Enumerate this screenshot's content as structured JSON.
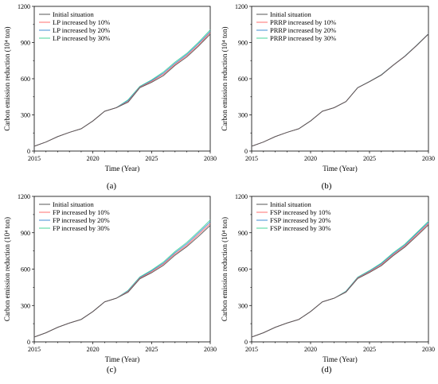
{
  "colors": {
    "initial": "#555555",
    "inc10": "#ff6f6f",
    "inc20": "#3f8fd6",
    "inc30": "#44d49a"
  },
  "chart_data": [
    {
      "type": "line",
      "panel_label": "(a)",
      "xlabel": "Time (Year)",
      "ylabel": "Carbon emission reduction (10⁴ ton)",
      "xlim": [
        2015,
        2030
      ],
      "ylim": [
        0,
        1200
      ],
      "xticks": [
        2015,
        2020,
        2025,
        2030
      ],
      "yticks": [
        0,
        300,
        600,
        900,
        1200
      ],
      "legend_position": "top-left",
      "x": [
        2015,
        2016,
        2017,
        2018,
        2019,
        2020,
        2021,
        2022,
        2023,
        2024,
        2025,
        2026,
        2027,
        2028,
        2029,
        2030
      ],
      "series": [
        {
          "name": "Initial situation",
          "values": [
            40,
            75,
            120,
            155,
            185,
            250,
            330,
            360,
            405,
            525,
            570,
            625,
            710,
            780,
            870,
            970
          ]
        },
        {
          "name": "LP increased by 10%",
          "values": [
            40,
            75,
            120,
            155,
            185,
            250,
            330,
            360,
            410,
            528,
            578,
            635,
            718,
            790,
            880,
            982
          ]
        },
        {
          "name": "LP increased by 20%",
          "values": [
            40,
            75,
            120,
            155,
            185,
            250,
            330,
            360,
            418,
            532,
            584,
            645,
            728,
            800,
            892,
            992
          ]
        },
        {
          "name": "LP increased by 30%",
          "values": [
            40,
            75,
            120,
            155,
            185,
            250,
            330,
            360,
            425,
            537,
            590,
            655,
            738,
            810,
            902,
            1005
          ]
        }
      ]
    },
    {
      "type": "line",
      "panel_label": "(b)",
      "xlabel": "Time (Year)",
      "ylabel": "Carbon emission reduction (10⁴ ton)",
      "xlim": [
        2015,
        2030
      ],
      "ylim": [
        0,
        1200
      ],
      "xticks": [
        2015,
        2020,
        2025,
        2030
      ],
      "yticks": [
        0,
        300,
        600,
        900,
        1200
      ],
      "legend_position": "top-left",
      "x": [
        2015,
        2016,
        2017,
        2018,
        2019,
        2020,
        2021,
        2022,
        2023,
        2024,
        2025,
        2026,
        2027,
        2028,
        2029,
        2030
      ],
      "series": [
        {
          "name": "Initial situation",
          "values": [
            40,
            75,
            120,
            155,
            185,
            250,
            330,
            360,
            410,
            525,
            575,
            630,
            710,
            785,
            875,
            970
          ]
        },
        {
          "name": "PRRP increased by 10%",
          "values": [
            40,
            75,
            120,
            155,
            185,
            250,
            330,
            360,
            410,
            525,
            576,
            631,
            711,
            786,
            876,
            971
          ]
        },
        {
          "name": "PRRP increased by 20%",
          "values": [
            40,
            75,
            120,
            155,
            185,
            250,
            330,
            360,
            410,
            526,
            577,
            632,
            712,
            787,
            877,
            972
          ]
        },
        {
          "name": "PRRP increased by 30%",
          "values": [
            40,
            75,
            120,
            155,
            185,
            250,
            330,
            360,
            410,
            526,
            578,
            633,
            713,
            788,
            878,
            973
          ]
        }
      ]
    },
    {
      "type": "line",
      "panel_label": "(c)",
      "xlabel": "Time (Year)",
      "ylabel": "Carbon emission reduction (10⁴ ton)",
      "xlim": [
        2015,
        2030
      ],
      "ylim": [
        0,
        1200
      ],
      "xticks": [
        2015,
        2020,
        2025,
        2030
      ],
      "yticks": [
        0,
        300,
        600,
        900,
        1200
      ],
      "legend_position": "top-left",
      "x": [
        2015,
        2016,
        2017,
        2018,
        2019,
        2020,
        2021,
        2022,
        2023,
        2024,
        2025,
        2026,
        2027,
        2028,
        2029,
        2030
      ],
      "series": [
        {
          "name": "Initial situation",
          "values": [
            40,
            75,
            120,
            155,
            185,
            250,
            330,
            360,
            410,
            520,
            570,
            630,
            715,
            785,
            870,
            960
          ]
        },
        {
          "name": "FP increased by 10%",
          "values": [
            40,
            75,
            120,
            155,
            185,
            250,
            330,
            360,
            415,
            525,
            578,
            640,
            725,
            795,
            885,
            975
          ]
        },
        {
          "name": "FP increased by 20%",
          "values": [
            40,
            75,
            120,
            155,
            185,
            250,
            330,
            360,
            420,
            530,
            585,
            648,
            735,
            808,
            898,
            990
          ]
        },
        {
          "name": "FP increased by 30%",
          "values": [
            40,
            75,
            120,
            155,
            185,
            250,
            330,
            360,
            425,
            535,
            592,
            658,
            745,
            820,
            910,
            1005
          ]
        }
      ]
    },
    {
      "type": "line",
      "panel_label": "(d)",
      "xlabel": "Time (Year)",
      "ylabel": "Carbon emission reduction (10⁴ ton)",
      "xlim": [
        2015,
        2030
      ],
      "ylim": [
        0,
        1200
      ],
      "xticks": [
        2015,
        2020,
        2025,
        2030
      ],
      "yticks": [
        0,
        300,
        600,
        900,
        1200
      ],
      "legend_position": "top-left",
      "x": [
        2015,
        2016,
        2017,
        2018,
        2019,
        2020,
        2021,
        2022,
        2023,
        2024,
        2025,
        2026,
        2027,
        2028,
        2029,
        2030
      ],
      "series": [
        {
          "name": "Initial situation",
          "values": [
            40,
            75,
            120,
            155,
            185,
            250,
            330,
            360,
            410,
            522,
            572,
            628,
            710,
            782,
            872,
            965
          ]
        },
        {
          "name": "FSP increased by 10%",
          "values": [
            40,
            75,
            120,
            155,
            185,
            250,
            330,
            360,
            412,
            526,
            578,
            636,
            718,
            790,
            882,
            975
          ]
        },
        {
          "name": "FSP increased by 20%",
          "values": [
            40,
            75,
            120,
            155,
            185,
            250,
            330,
            360,
            415,
            530,
            583,
            643,
            726,
            798,
            892,
            985
          ]
        },
        {
          "name": "FSP increased by 30%",
          "values": [
            40,
            75,
            120,
            155,
            185,
            250,
            330,
            360,
            418,
            534,
            588,
            650,
            734,
            806,
            900,
            995
          ]
        }
      ]
    }
  ]
}
